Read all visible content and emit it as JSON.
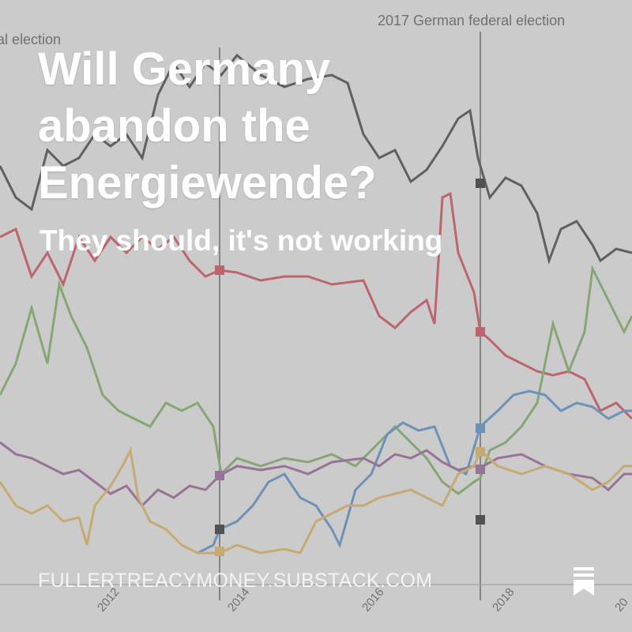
{
  "card": {
    "title": "Will Germany abandon the Energiewende?",
    "subtitle": "They should, it's not working",
    "footer_domain": "FULLERTREACYMONEY.SUBSTACK.COM",
    "icon": "bookmark-icon"
  },
  "background_chart": {
    "annotations": [
      "al election",
      "2017 German federal election"
    ],
    "x_tick_labels": [
      "2012",
      "2014",
      "2016",
      "2018",
      "20"
    ],
    "colors": {
      "black": "#3a3a3a",
      "red": "#d9434f",
      "green": "#7cb25e",
      "blue": "#4f8fcf",
      "purple": "#9a5a96",
      "yellow": "#e8b85a"
    }
  },
  "colors": {
    "text": "#ffffff",
    "overlay": "rgba(150,150,150,0.42)"
  }
}
